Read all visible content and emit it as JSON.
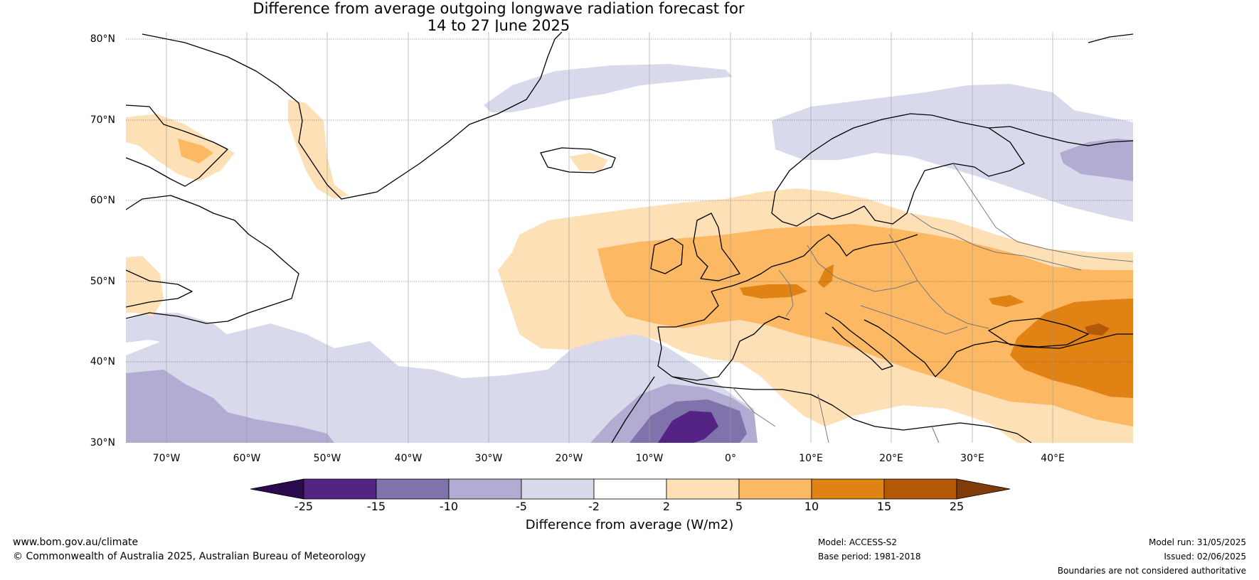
{
  "title": {
    "line1": "Difference from average outgoing longwave radiation forecast for",
    "line2": "14 to 27 June 2025"
  },
  "map": {
    "lat_labels": [
      "80°N",
      "70°N",
      "60°N",
      "50°N",
      "40°N",
      "30°N"
    ],
    "lon_labels": [
      "70°W",
      "60°W",
      "50°W",
      "40°W",
      "30°W",
      "20°W",
      "10°W",
      "0°",
      "10°E",
      "20°E",
      "30°E",
      "40°E"
    ],
    "lat_values": [
      80,
      70,
      60,
      50,
      40,
      30
    ],
    "lon_values": [
      -70,
      -60,
      -50,
      -40,
      -30,
      -20,
      -10,
      0,
      10,
      20,
      30,
      40
    ],
    "lon_range": [
      -75,
      50
    ],
    "lat_range": [
      30,
      81
    ],
    "grid": true,
    "anomaly_pattern": "Positive (orange) anomalies over Europe, western Russia and the eastern North Atlantic; negative (purple) anomalies over NW Africa, the subtropical Atlantic and the Barents Sea"
  },
  "colorbar": {
    "title": "Difference from average (W/m2)",
    "tick_labels": [
      "-25",
      "-15",
      "-10",
      "-5",
      "-2",
      "2",
      "5",
      "10",
      "15",
      "25"
    ],
    "bins": [
      {
        "range": "< -25",
        "color": "#2d0a4d"
      },
      {
        "range": "-25 to -15",
        "color": "#542485"
      },
      {
        "range": "-15 to -10",
        "color": "#8073ac"
      },
      {
        "range": "-10 to -5",
        "color": "#b2abd2"
      },
      {
        "range": "-5 to -2",
        "color": "#d8daeb"
      },
      {
        "range": "-2 to 2",
        "color": "#ffffff"
      },
      {
        "range": "2 to 5",
        "color": "#fee0b6"
      },
      {
        "range": "5 to 10",
        "color": "#fdb863"
      },
      {
        "range": "10 to 15",
        "color": "#e08214"
      },
      {
        "range": "15 to 25",
        "color": "#b35806"
      },
      {
        "range": "> 25",
        "color": "#7f3b08"
      }
    ]
  },
  "footer": {
    "website": "www.bom.gov.au/climate",
    "copyright": "© Commonwealth of Australia 2025, Australian Bureau of Meteorology",
    "model": "Model: ACCESS-S2",
    "base_period": "Base period: 1981-2018",
    "model_run": "Model run: 31/05/2025",
    "issued": "Issued: 02/06/2025",
    "disclaimer": "Boundaries are not considered authoritative"
  }
}
